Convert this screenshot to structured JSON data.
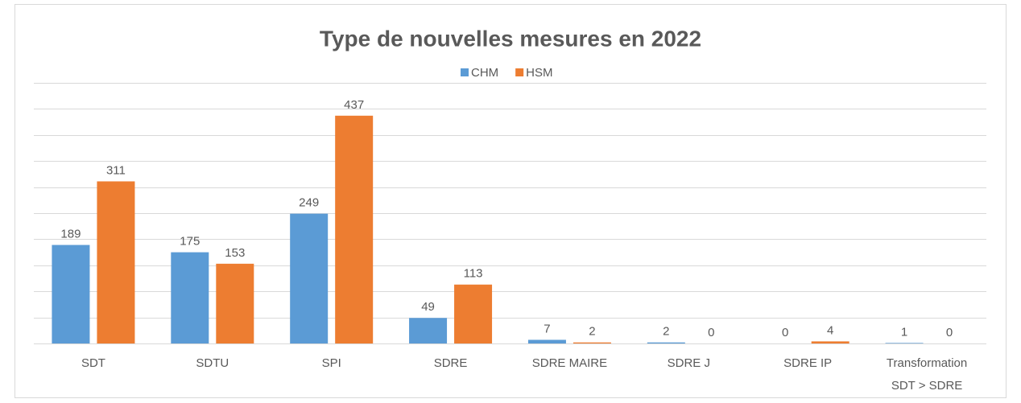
{
  "chart_data": {
    "type": "bar",
    "title": "Type de nouvelles mesures en 2022",
    "categories": [
      "SDT",
      "SDTU",
      "SPI",
      "SDRE",
      "SDRE MAIRE",
      "SDRE J",
      "SDRE IP",
      "Transformation SDT > SDRE"
    ],
    "series": [
      {
        "name": "CHM",
        "color": "#5b9bd5",
        "values": [
          189,
          175,
          249,
          49,
          7,
          2,
          0,
          1
        ]
      },
      {
        "name": "HSM",
        "color": "#ed7d31",
        "values": [
          311,
          153,
          437,
          113,
          2,
          0,
          4,
          0
        ]
      }
    ],
    "ylim": [
      0,
      500
    ],
    "yticks": [
      0,
      50,
      100,
      150,
      200,
      250,
      300,
      350,
      400,
      450,
      500
    ],
    "grid": true,
    "legend": "top"
  }
}
